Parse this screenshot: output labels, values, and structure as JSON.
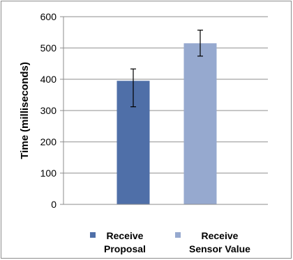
{
  "chart_data": {
    "type": "bar",
    "categories": [
      "Receive Proposal",
      "Receive Sensor Value"
    ],
    "category_lines": [
      [
        "Receive",
        "Proposal"
      ],
      [
        "Receive",
        "Sensor Value"
      ]
    ],
    "series": [
      {
        "name": "Receive Proposal",
        "value": 395,
        "error_low": 312,
        "error_high": 433,
        "color": "#4F6FA8"
      },
      {
        "name": "Receive Sensor Value",
        "value": 515,
        "error_low": 474,
        "error_high": 557,
        "color": "#96A9CF"
      }
    ],
    "ylabel": "Time (milliseconds)",
    "ylim": [
      0,
      600
    ],
    "yticks": [
      0,
      100,
      200,
      300,
      400,
      500,
      600
    ],
    "grid": true,
    "legend_position": "bottom"
  }
}
